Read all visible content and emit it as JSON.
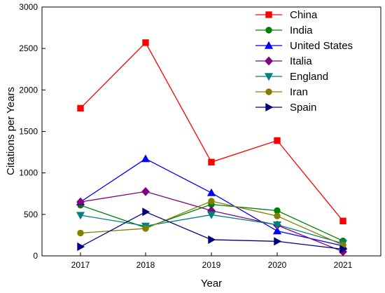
{
  "chart_data": {
    "type": "line",
    "xlabel": "Year",
    "ylabel": "Citations per Years",
    "categories": [
      "2017",
      "2018",
      "2019",
      "2020",
      "2021"
    ],
    "ylim": [
      0,
      3000
    ],
    "yticks": [
      0,
      500,
      1000,
      1500,
      2000,
      2500,
      3000
    ],
    "grid": false,
    "legend_position": "top-right",
    "series": [
      {
        "name": "China",
        "color": "#ff0000",
        "marker": "square",
        "values": [
          1780,
          2570,
          1130,
          1390,
          420
        ]
      },
      {
        "name": "India",
        "color": "#008000",
        "marker": "circle",
        "values": [
          610,
          340,
          620,
          545,
          180
        ]
      },
      {
        "name": "United States",
        "color": "#0000ff",
        "marker": "triangle-up",
        "values": [
          650,
          1170,
          760,
          300,
          120
        ]
      },
      {
        "name": "Italia",
        "color": "#800080",
        "marker": "diamond",
        "values": [
          650,
          775,
          545,
          370,
          50
        ]
      },
      {
        "name": "England",
        "color": "#008080",
        "marker": "triangle-down",
        "values": [
          490,
          360,
          495,
          375,
          150
        ]
      },
      {
        "name": "Iran",
        "color": "#808000",
        "marker": "circle",
        "values": [
          275,
          330,
          660,
          480,
          130
        ]
      },
      {
        "name": "Spain",
        "color": "#000080",
        "marker": "triangle-right",
        "values": [
          110,
          530,
          195,
          175,
          80
        ]
      }
    ]
  }
}
